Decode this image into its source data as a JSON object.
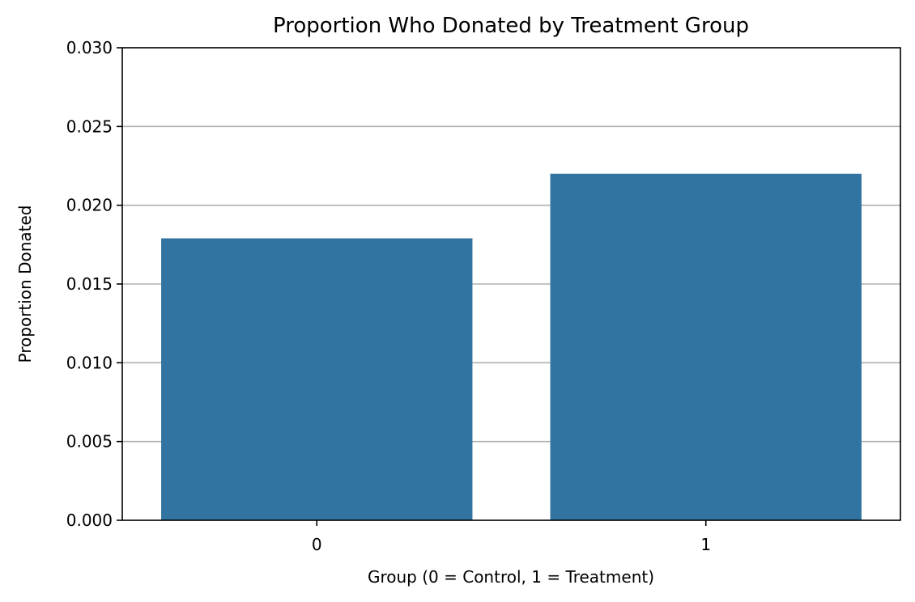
{
  "chart_data": {
    "type": "bar",
    "title": "Proportion Who Donated by Treatment Group",
    "xlabel": "Group (0 = Control, 1 = Treatment)",
    "ylabel": "Proportion Donated",
    "categories": [
      "0",
      "1"
    ],
    "values": [
      0.0179,
      0.022
    ],
    "ylim": [
      0,
      0.03
    ],
    "yticks": [
      0.0,
      0.005,
      0.01,
      0.015,
      0.02,
      0.025,
      0.03
    ],
    "ytick_labels": [
      "0.000",
      "0.005",
      "0.010",
      "0.015",
      "0.020",
      "0.025",
      "0.030"
    ],
    "grid": "y-axis only",
    "legend": "none",
    "bar_color": "#3274a1",
    "grid_color": "#b0b0b0"
  }
}
